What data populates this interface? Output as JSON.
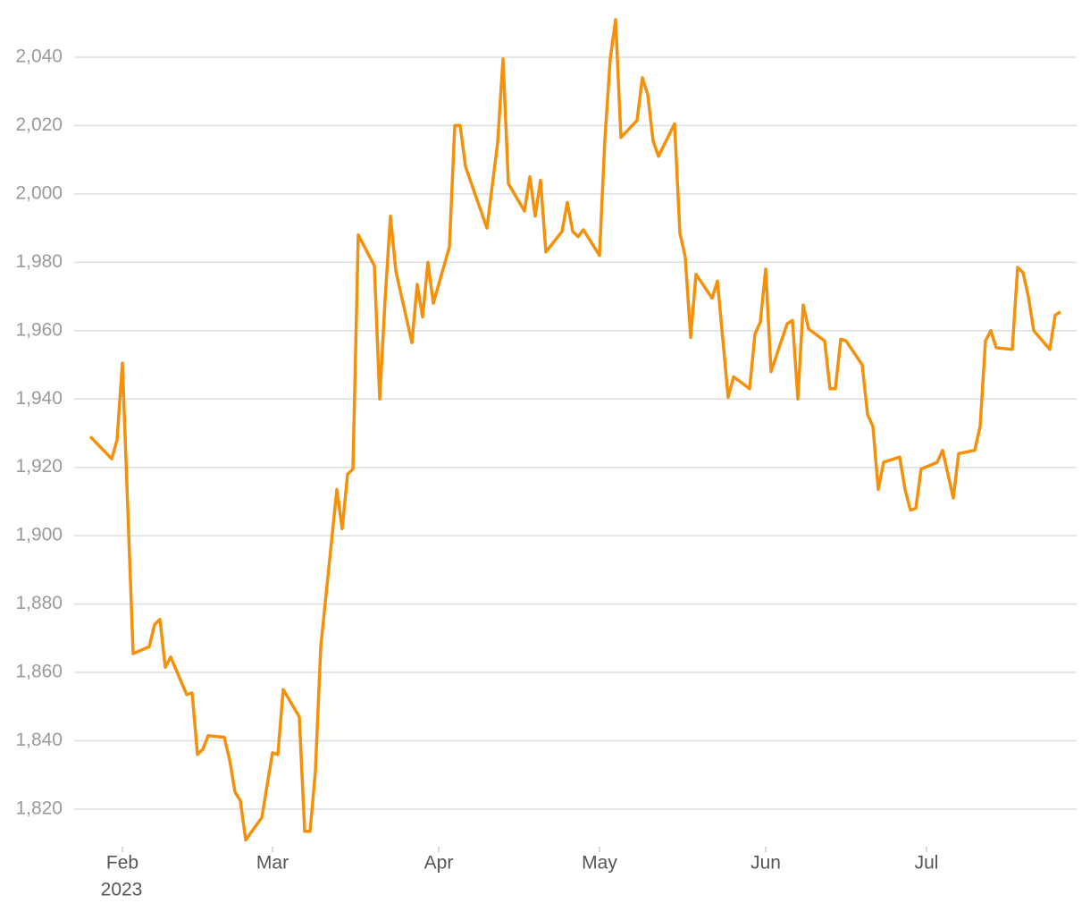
{
  "chart_data": {
    "type": "line",
    "year_label": "2023",
    "x": [
      26,
      30,
      31,
      32,
      34,
      37,
      38,
      39,
      40,
      41,
      44,
      45,
      46,
      47,
      48,
      51,
      52,
      53,
      54,
      55,
      58,
      60,
      61,
      62,
      65,
      66,
      67,
      68,
      69,
      72,
      73,
      74,
      75,
      76,
      79,
      80,
      81,
      82,
      83,
      86,
      87,
      88,
      89,
      90,
      93,
      94,
      95,
      96,
      100,
      101,
      102,
      103,
      104,
      107,
      108,
      109,
      110,
      111,
      114,
      115,
      116,
      117,
      118,
      121,
      122,
      123,
      124,
      125,
      128,
      129,
      130,
      131,
      132,
      135,
      136,
      137,
      138,
      139,
      142,
      143,
      145,
      146,
      149,
      150,
      151,
      152,
      153,
      156,
      157,
      158,
      159,
      160,
      163,
      164,
      165,
      166,
      167,
      170,
      171,
      172,
      173,
      174,
      177,
      178,
      179,
      180,
      181,
      184,
      185,
      186,
      187,
      188,
      191,
      192,
      193,
      194,
      195,
      198,
      199,
      200,
      201,
      202,
      205,
      206,
      207
    ],
    "series": [
      {
        "color": "#f5900a",
        "values": [
          1929,
          1922.5,
          1928,
          1950.5,
          1865.5,
          1867.5,
          1874,
          1875.5,
          1861.5,
          1864.5,
          1853.5,
          1854,
          1836,
          1837.5,
          1841.5,
          1841,
          1834.5,
          1825,
          1822.5,
          1811,
          1817.5,
          1836.5,
          1836,
          1855,
          1847,
          1813.5,
          1813.5,
          1831,
          1867.5,
          1913.5,
          1902,
          1918,
          1919.5,
          1988,
          1979,
          1940,
          1969,
          1993.5,
          1977.5,
          1956.5,
          1973.5,
          1964,
          1980,
          1968,
          1984.5,
          2020,
          2020,
          2008,
          1990,
          2002.5,
          2015,
          2039.5,
          2003,
          1995,
          2005,
          1993.5,
          2004,
          1983,
          1989,
          1997.5,
          1989,
          1987.5,
          1989.5,
          1982,
          2016,
          2039.5,
          2051,
          2016.5,
          2021.5,
          2034,
          2029,
          2015.5,
          2011,
          2020.5,
          1988.5,
          1981.5,
          1958,
          1976.5,
          1969.5,
          1974.5,
          1940.5,
          1946.5,
          1943,
          1959,
          1962.5,
          1978,
          1948,
          1962,
          1963,
          1940,
          1967.5,
          1960.5,
          1957,
          1943,
          1943,
          1957.5,
          1957,
          1950,
          1935.5,
          1932,
          1913.5,
          1921.5,
          1923,
          1913.5,
          1907.5,
          1908,
          1919.5,
          1921.5,
          1925,
          1918,
          1911,
          1924,
          1925,
          1932,
          1957,
          1960,
          1955,
          1954.5,
          1978.5,
          1977,
          1970,
          1960,
          1954.5,
          1964.5,
          1965.5
        ]
      }
    ],
    "xlim": [
      23,
      210
    ],
    "xticks": [
      {
        "value": 32,
        "label": "Feb"
      },
      {
        "value": 60,
        "label": "Mar"
      },
      {
        "value": 91,
        "label": "Apr"
      },
      {
        "value": 121,
        "label": "May"
      },
      {
        "value": 152,
        "label": "Jun"
      },
      {
        "value": 182,
        "label": "Jul"
      }
    ],
    "ylim": [
      1809,
      2052
    ],
    "yticks": [
      {
        "value": 1820,
        "label": "1,820"
      },
      {
        "value": 1840,
        "label": "1,840"
      },
      {
        "value": 1860,
        "label": "1,860"
      },
      {
        "value": 1880,
        "label": "1,880"
      },
      {
        "value": 1900,
        "label": "1,900"
      },
      {
        "value": 1920,
        "label": "1,920"
      },
      {
        "value": 1940,
        "label": "1,940"
      },
      {
        "value": 1960,
        "label": "1,960"
      },
      {
        "value": 1980,
        "label": "1,980"
      },
      {
        "value": 2000,
        "label": "2,000"
      },
      {
        "value": 2020,
        "label": "2,020"
      },
      {
        "value": 2040,
        "label": "2,040"
      }
    ],
    "grid": true
  }
}
